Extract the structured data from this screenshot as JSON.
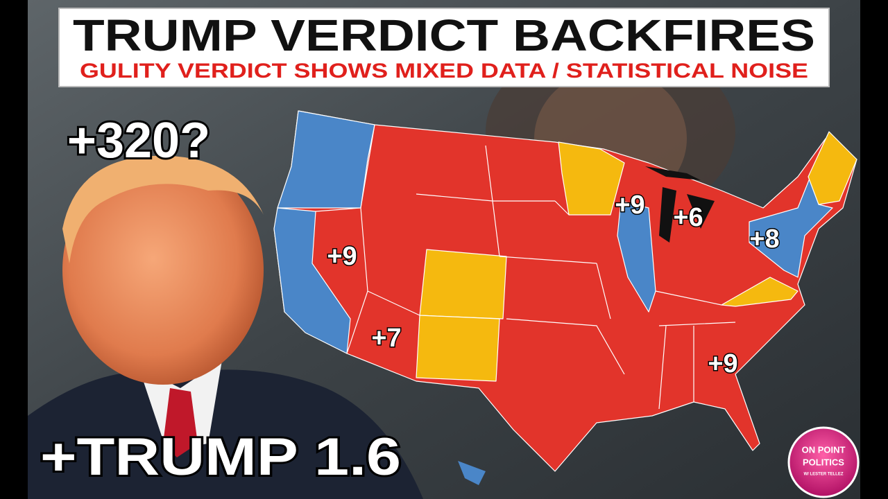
{
  "header": {
    "title": "TRUMP VERDICT BACKFIRES",
    "subtitle": "GULITY VERDICT SHOWS MIXED DATA / STATISTICAL NOISE"
  },
  "overlay": {
    "projection": "+320?",
    "margin": "+TRUMP 1.6"
  },
  "map": {
    "labels": [
      "+9",
      "+7",
      "+9",
      "+6",
      "+8",
      "+9"
    ]
  },
  "logo": {
    "line1": "ON POINT",
    "line2": "POLITICS",
    "line3": "W/ LESTER TELLEZ"
  }
}
